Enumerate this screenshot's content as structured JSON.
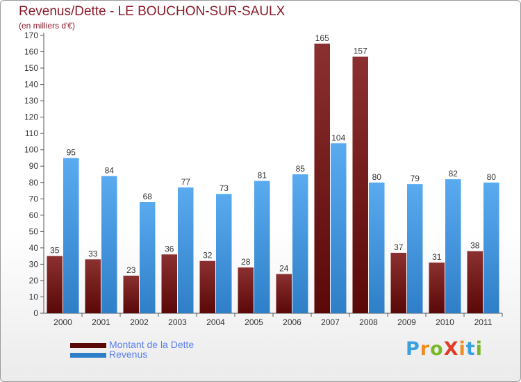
{
  "title": "Revenus/Dette - LE BOUCHON-SUR-SAULX",
  "subtitle": "(en milliers d'€)",
  "colors": {
    "title": "#8b1a2a",
    "dette_top": "#8b3030",
    "dette_bottom": "#5a0808",
    "revenus_top": "#5aaaf0",
    "revenus_bottom": "#2f7fc8",
    "legend_text": "#5b7ff0"
  },
  "legend": [
    {
      "label": "Montant de la Dette",
      "series": "dette"
    },
    {
      "label": "Revenus",
      "series": "revenus"
    }
  ],
  "logo": {
    "text": "ProXiti",
    "letter_colors": [
      "#3aa0e0",
      "#f28c1e",
      "#78b828",
      "#e23a2a",
      "#f28c1e",
      "#3aa0e0",
      "#78b828"
    ]
  },
  "chart_data": {
    "type": "bar",
    "title": "Revenus/Dette - LE BOUCHON-SUR-SAULX",
    "ylabel": "(en milliers d'€)",
    "xlabel": "",
    "categories": [
      "2000",
      "2001",
      "2002",
      "2003",
      "2004",
      "2005",
      "2006",
      "2007",
      "2008",
      "2009",
      "2010",
      "2011"
    ],
    "series": [
      {
        "name": "Montant de la Dette",
        "values": [
          35,
          33,
          23,
          36,
          32,
          28,
          24,
          165,
          157,
          37,
          31,
          38
        ]
      },
      {
        "name": "Revenus",
        "values": [
          95,
          84,
          68,
          77,
          73,
          81,
          85,
          104,
          80,
          79,
          82,
          80
        ]
      }
    ],
    "ylim": [
      0,
      170
    ],
    "ytick_step": 10,
    "grid": false,
    "legend_position": "bottom-left"
  }
}
